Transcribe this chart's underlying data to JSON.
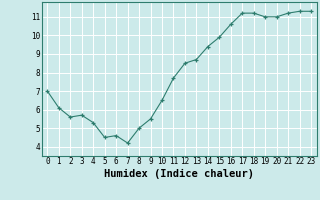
{
  "x": [
    0,
    1,
    2,
    3,
    4,
    5,
    6,
    7,
    8,
    9,
    10,
    11,
    12,
    13,
    14,
    15,
    16,
    17,
    18,
    19,
    20,
    21,
    22,
    23
  ],
  "y": [
    7.0,
    6.1,
    5.6,
    5.7,
    5.3,
    4.5,
    4.6,
    4.2,
    5.0,
    5.5,
    6.5,
    7.7,
    8.5,
    8.7,
    9.4,
    9.9,
    10.6,
    11.2,
    11.2,
    11.0,
    11.0,
    11.2,
    11.3,
    11.3
  ],
  "xlabel": "Humidex (Indice chaleur)",
  "ylim": [
    3.5,
    11.8
  ],
  "xlim": [
    -0.5,
    23.5
  ],
  "yticks": [
    4,
    5,
    6,
    7,
    8,
    9,
    10,
    11
  ],
  "xticks": [
    0,
    1,
    2,
    3,
    4,
    5,
    6,
    7,
    8,
    9,
    10,
    11,
    12,
    13,
    14,
    15,
    16,
    17,
    18,
    19,
    20,
    21,
    22,
    23
  ],
  "line_color": "#2e7d6e",
  "marker": "+",
  "bg_color": "#cceaea",
  "grid_color": "#ffffff",
  "axis_color": "#2e7d6e",
  "tick_label_fontsize": 5.5,
  "xlabel_fontsize": 7.5,
  "xlabel_fontweight": "bold"
}
